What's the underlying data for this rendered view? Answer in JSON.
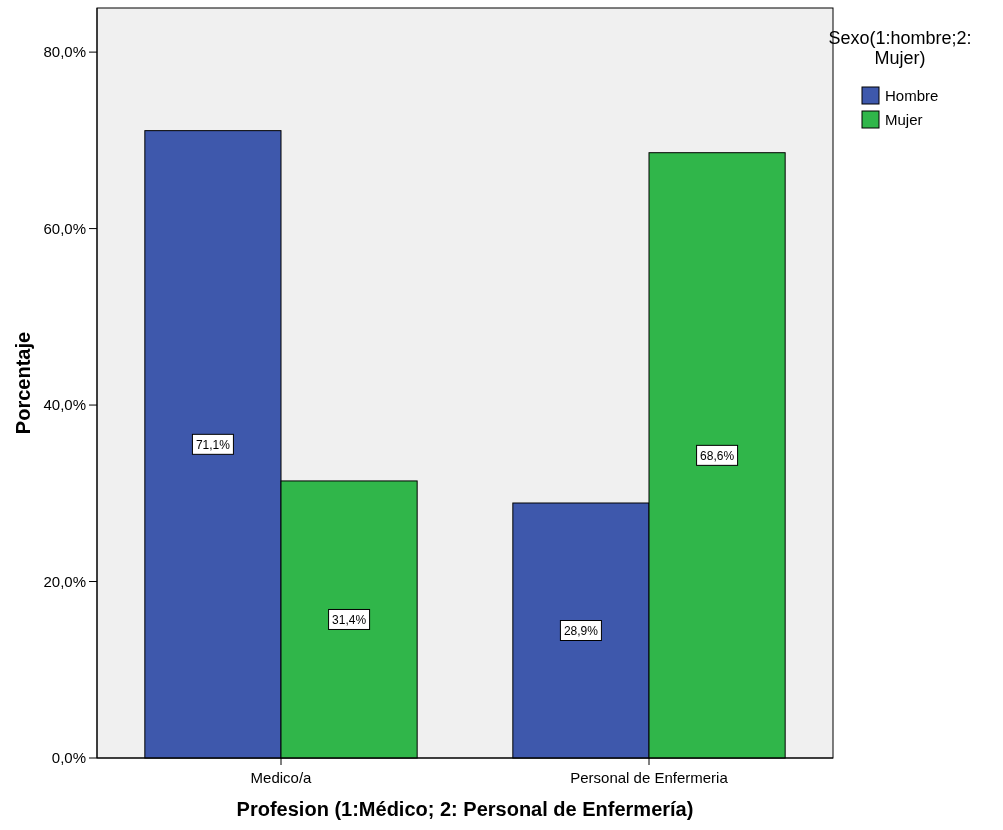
{
  "chart_data": {
    "type": "bar",
    "xlabel": "Profesion (1:Médico; 2: Personal de Enfermería)",
    "ylabel": "Porcentaje",
    "legend_title": "Sexo(1:hombre;2: Mujer)",
    "legend": "top right",
    "grid": false,
    "categories": [
      "Medico/a",
      "Personal de Enfermeria"
    ],
    "series": [
      {
        "name": "Hombre",
        "color": "#3e58ac",
        "values": [
          71.1,
          28.9
        ],
        "value_labels": [
          "71,1%",
          "28,9%"
        ]
      },
      {
        "name": "Mujer",
        "color": "#30b64a",
        "values": [
          31.4,
          68.6
        ],
        "value_labels": [
          "31,4%",
          "68,6%"
        ]
      }
    ],
    "ylim": [
      0,
      85
    ],
    "yticks": [
      {
        "value": 0,
        "label": "0,0%"
      },
      {
        "value": 20,
        "label": "20,0%"
      },
      {
        "value": 40,
        "label": "40,0%"
      },
      {
        "value": 60,
        "label": "60,0%"
      },
      {
        "value": 80,
        "label": "80,0%"
      }
    ]
  }
}
